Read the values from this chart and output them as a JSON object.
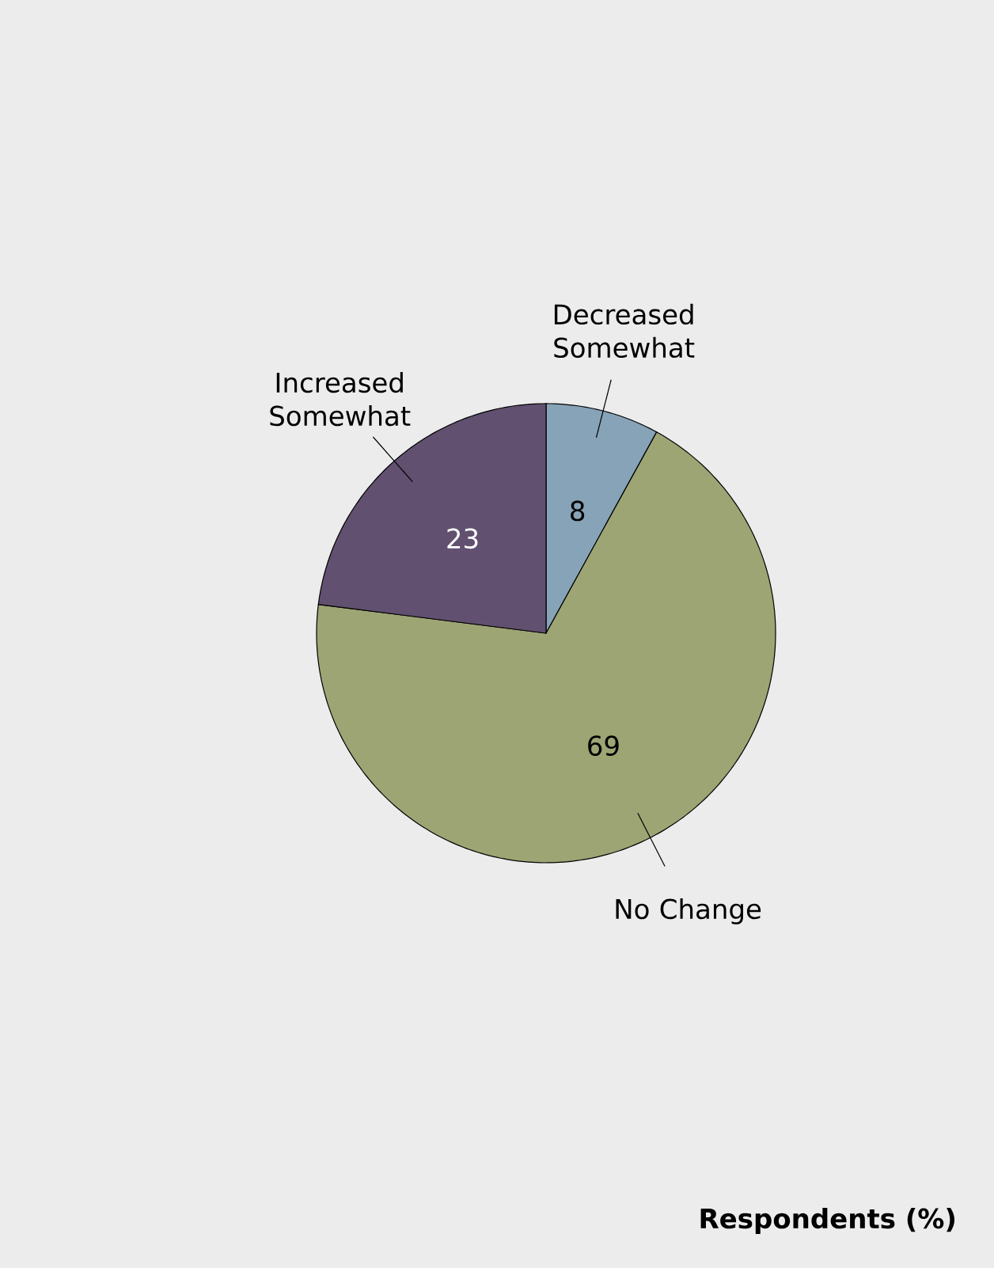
{
  "chart_data": {
    "type": "pie",
    "categories": [
      "Decreased Somewhat",
      "No Change",
      "Increased Somewhat"
    ],
    "values": [
      8,
      69,
      23
    ],
    "colors": [
      "#87a3b8",
      "#9da574",
      "#625070"
    ],
    "data_labels": true,
    "annotations": [
      "Respondents (%)"
    ]
  }
}
